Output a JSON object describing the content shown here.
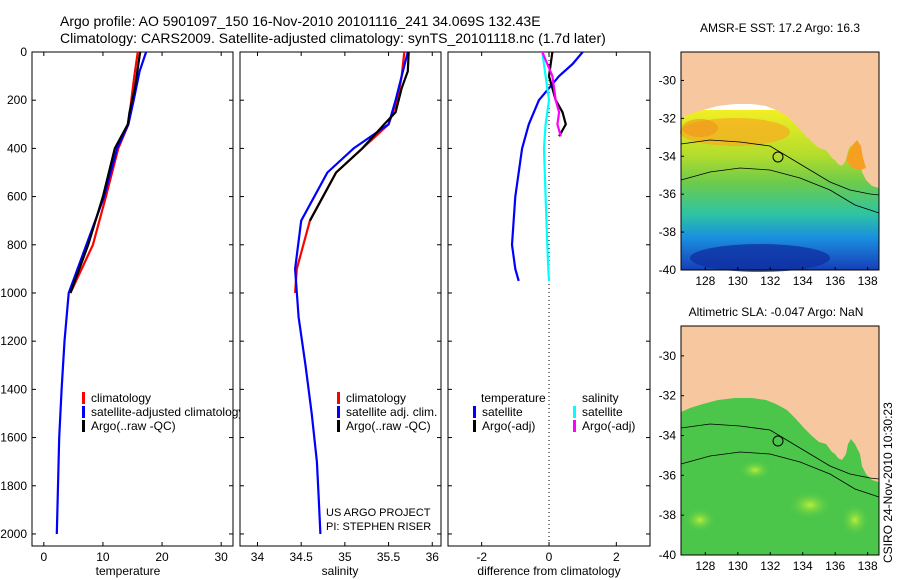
{
  "header": {
    "line1": "Argo profile: AO 5901097_150 16-Nov-2010 20101116_241 34.069S 132.43E",
    "line2": "Climatology: CARS2009. Satellite-adjusted climatology: synTS_20101118.nc (1.7d later)"
  },
  "colors": {
    "climatology": "#ff0000",
    "satellite": "#0000ff",
    "argo": "#000000",
    "satellite_salinity": "#00ffff",
    "argo_salinity": "#ff00ff",
    "land": "#f7c89f"
  },
  "chart_data": [
    {
      "type": "line",
      "id": "temperature",
      "xlabel": "temperature",
      "ylabel": "",
      "xlim": [
        -2,
        32
      ],
      "ylim": [
        2050,
        0
      ],
      "xticks": [
        0,
        10,
        20,
        30
      ],
      "yticks": [
        0,
        200,
        400,
        600,
        800,
        1000,
        1200,
        1400,
        1600,
        1800,
        2000
      ],
      "legend_position": "lower-right",
      "series": [
        {
          "name": "climatology",
          "color": "#ff0000",
          "x": [
            15.9,
            15.3,
            14.8,
            14.3,
            12.6,
            10.5,
            8.3,
            6.4,
            4.5
          ],
          "y": [
            0,
            100,
            200,
            300,
            400,
            600,
            800,
            900,
            1000
          ]
        },
        {
          "name": "satellite-adjusted climatology",
          "color": "#0000ff",
          "x": [
            17.3,
            16.2,
            15.2,
            14.3,
            12.4,
            10.2,
            7.2,
            4.2,
            3.5,
            3.0,
            2.6,
            2.4,
            2.3,
            2.25,
            2.2
          ],
          "y": [
            0,
            80,
            200,
            300,
            400,
            600,
            800,
            1000,
            1200,
            1400,
            1600,
            1800,
            1900,
            1950,
            2000
          ]
        },
        {
          "name": "Argo(..raw -QC)",
          "color": "#000000",
          "x": [
            16.3,
            16.0,
            15.4,
            14.5,
            14.2,
            13.1,
            12.0,
            10.0,
            7.5,
            4.5
          ],
          "y": [
            0,
            50,
            150,
            250,
            300,
            350,
            400,
            600,
            800,
            1000
          ]
        }
      ]
    },
    {
      "type": "line",
      "id": "salinity",
      "xlabel": "salinity",
      "xlim": [
        33.8,
        36.1
      ],
      "ylim": [
        2050,
        0
      ],
      "xticks": [
        34,
        34.5,
        35,
        35.5,
        36
      ],
      "legend_position": "lower-right",
      "series": [
        {
          "name": "climatology",
          "color": "#ff0000",
          "x": [
            35.68,
            35.65,
            35.6,
            35.5,
            35.2,
            34.9,
            34.6,
            34.45,
            34.43
          ],
          "y": [
            0,
            100,
            200,
            300,
            400,
            500,
            700,
            900,
            1000
          ]
        },
        {
          "name": "satellite adj. clim.",
          "color": "#0000ff",
          "x": [
            35.72,
            35.65,
            35.58,
            35.5,
            35.1,
            34.8,
            34.5,
            34.43,
            34.47,
            34.55,
            34.62,
            34.68,
            34.7,
            34.72
          ],
          "y": [
            0,
            100,
            200,
            300,
            400,
            500,
            700,
            900,
            1100,
            1300,
            1500,
            1700,
            1850,
            2000
          ]
        },
        {
          "name": "Argo(..raw -QC)",
          "color": "#000000",
          "x": [
            35.73,
            35.72,
            35.65,
            35.58,
            35.45,
            35.2,
            34.9,
            34.6
          ],
          "y": [
            0,
            80,
            150,
            250,
            300,
            400,
            500,
            700
          ]
        }
      ]
    },
    {
      "type": "line",
      "id": "difference",
      "xlabel": "difference from climatology",
      "xlim": [
        -3,
        3
      ],
      "ylim": [
        2050,
        0
      ],
      "xticks": [
        -2,
        0,
        2
      ],
      "legend_position": "lower-center",
      "legend_groups": [
        {
          "title": "temperature",
          "entries": [
            {
              "name": "satellite",
              "color": "#0000ff"
            },
            {
              "name": "Argo(-adj)",
              "color": "#000000"
            }
          ]
        },
        {
          "title": "salinity",
          "entries": [
            {
              "name": "satellite",
              "color": "#00ffff"
            },
            {
              "name": "Argo(-adj)",
              "color": "#ff00ff"
            }
          ]
        }
      ],
      "series": [
        {
          "name": "temperature satellite",
          "color": "#0000ff",
          "x": [
            1.0,
            0.7,
            0.3,
            -0.3,
            -0.6,
            -0.8,
            -1.0,
            -1.1,
            -1.0,
            -0.9
          ],
          "y": [
            0,
            50,
            100,
            200,
            300,
            400,
            600,
            800,
            900,
            950
          ]
        },
        {
          "name": "temperature Argo(-adj)",
          "color": "#000000",
          "x": [
            0.1,
            0.0,
            0.2,
            0.4,
            0.5,
            0.3
          ],
          "y": [
            0,
            100,
            200,
            250,
            300,
            350
          ]
        },
        {
          "name": "salinity satellite",
          "color": "#00ffff",
          "x": [
            -0.2,
            -0.1,
            0.0,
            -0.1,
            -0.15,
            -0.1,
            -0.05,
            -0.02,
            0.0
          ],
          "y": [
            0,
            100,
            200,
            300,
            400,
            600,
            800,
            900,
            950
          ]
        },
        {
          "name": "salinity Argo(-adj)",
          "color": "#ff00ff",
          "x": [
            -0.2,
            0.1,
            0.2,
            0.3,
            0.25,
            0.35
          ],
          "y": [
            0,
            100,
            200,
            250,
            300,
            350
          ]
        }
      ]
    },
    {
      "type": "heatmap",
      "id": "sst-map",
      "title": "AMSR-E SST: 17.2 Argo: 16.3",
      "xlim": [
        126.5,
        138.7
      ],
      "ylim": [
        -40,
        -28.5
      ],
      "xticks": [
        128,
        130,
        132,
        134,
        136,
        138
      ],
      "yticks": [
        -30,
        -32,
        -34,
        -36,
        -38,
        -40
      ]
    },
    {
      "type": "heatmap",
      "id": "sla-map",
      "title": "Altimetric SLA: -0.047 Argo: NaN",
      "xlim": [
        126.5,
        138.7
      ],
      "ylim": [
        -40,
        -28.5
      ],
      "xticks": [
        128,
        130,
        132,
        134,
        136,
        138
      ],
      "yticks": [
        -30,
        -32,
        -34,
        -36,
        -38,
        -40
      ]
    }
  ],
  "legends": {
    "temperature": [
      "climatology",
      "satellite-adjusted climatology",
      "Argo(..raw -QC)"
    ],
    "salinity": [
      "climatology",
      "satellite adj. clim.",
      "Argo(..raw -QC)"
    ]
  },
  "credits": {
    "project": "US ARGO PROJECT",
    "pi": "PI: STEPHEN RISER",
    "stamp": "CSIRO 24-Nov-2010 10:30:23"
  }
}
